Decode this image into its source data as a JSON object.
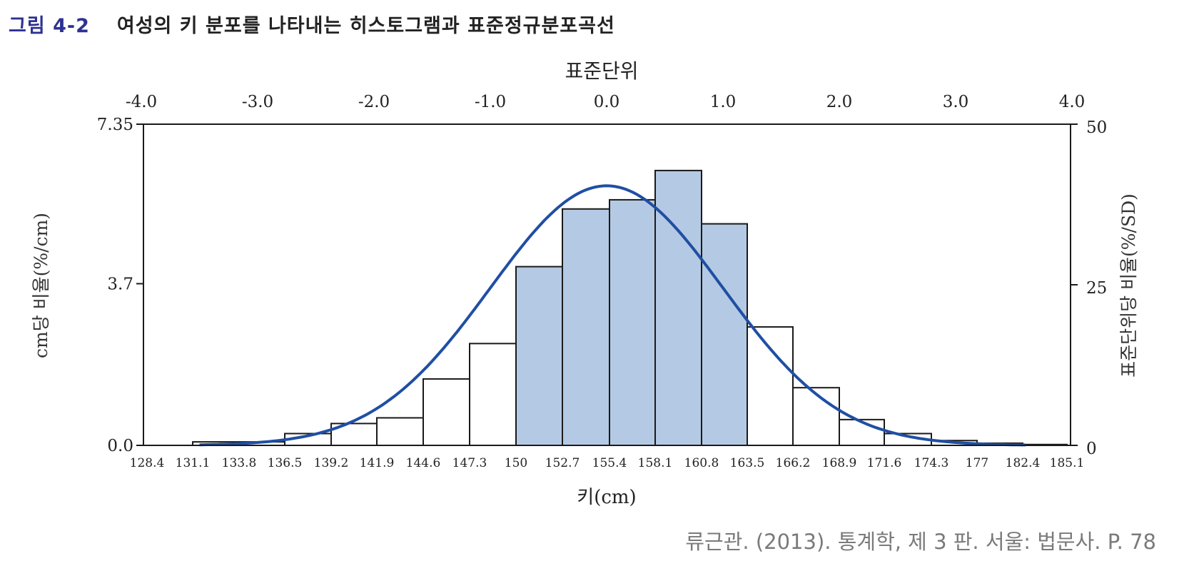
{
  "figure": {
    "label": "그림 4-2",
    "title": "여성의 키 분포를 나타내는 히스토그램과 표준정규분포곡선"
  },
  "citation": "류근관. (2013). 통계학, 제 3 판. 서울: 법문사. P. 78",
  "colors": {
    "highlight_fill": "#b4c9e3",
    "curve": "#1f4fa3",
    "bar_stroke": "#1a1a1a",
    "figure_label": "#2e3192"
  },
  "chart_data": {
    "type": "bar",
    "xlabel": "키(cm)",
    "ylabel_left": "cm당 비율(%/cm)",
    "ylabel_right": "표준단위당 비율(%/SD)",
    "top_axis_label": "표준단위",
    "x_tick_labels": [
      "128.4",
      "131.1",
      "133.8",
      "136.5",
      "139.2",
      "141.9",
      "144.6",
      "147.3",
      "150",
      "152.7",
      "155.4",
      "158.1",
      "160.8",
      "163.5",
      "166.2",
      "168.9",
      "171.6",
      "174.3",
      "177",
      "182.4",
      "185.1"
    ],
    "top_tick_labels": [
      "-4.0",
      "-3.0",
      "-2.0",
      "-1.0",
      "0.0",
      "1.0",
      "2.0",
      "3.0",
      "4.0"
    ],
    "top_ticks_values": [
      -4,
      -3,
      -2,
      -1,
      0,
      1,
      2,
      3,
      4
    ],
    "left_tick_labels": [
      "0.0",
      "3.7",
      "7.35"
    ],
    "left_ticks_values": [
      0,
      3.7,
      7.35
    ],
    "right_tick_labels": [
      "0",
      "25",
      "50"
    ],
    "right_ticks_values": [
      0,
      25,
      50
    ],
    "ylim_left": [
      0,
      7.35
    ],
    "ylim_right": [
      0,
      50
    ],
    "bars": [
      {
        "from": 131.1,
        "to": 133.8,
        "value": 0.08,
        "highlight": false
      },
      {
        "from": 133.8,
        "to": 136.5,
        "value": 0.08,
        "highlight": false
      },
      {
        "from": 136.5,
        "to": 139.2,
        "value": 0.27,
        "highlight": false
      },
      {
        "from": 139.2,
        "to": 141.9,
        "value": 0.5,
        "highlight": false
      },
      {
        "from": 141.9,
        "to": 144.6,
        "value": 0.63,
        "highlight": false
      },
      {
        "from": 144.6,
        "to": 147.3,
        "value": 1.52,
        "highlight": false
      },
      {
        "from": 147.3,
        "to": 150.0,
        "value": 2.33,
        "highlight": false
      },
      {
        "from": 150.0,
        "to": 152.7,
        "value": 4.09,
        "highlight": true
      },
      {
        "from": 152.7,
        "to": 155.4,
        "value": 5.41,
        "highlight": true
      },
      {
        "from": 155.4,
        "to": 158.1,
        "value": 5.62,
        "highlight": true
      },
      {
        "from": 158.1,
        "to": 160.8,
        "value": 6.29,
        "highlight": true
      },
      {
        "from": 160.8,
        "to": 163.5,
        "value": 5.07,
        "highlight": true
      },
      {
        "from": 163.5,
        "to": 166.2,
        "value": 2.71,
        "highlight": false
      },
      {
        "from": 166.2,
        "to": 168.9,
        "value": 1.32,
        "highlight": false
      },
      {
        "from": 168.9,
        "to": 171.6,
        "value": 0.59,
        "highlight": false
      },
      {
        "from": 171.6,
        "to": 174.3,
        "value": 0.27,
        "highlight": false
      },
      {
        "from": 174.3,
        "to": 177.0,
        "value": 0.11,
        "highlight": false
      },
      {
        "from": 177.0,
        "to": 182.4,
        "value": 0.05,
        "highlight": false
      },
      {
        "from": 182.4,
        "to": 185.1,
        "value": 0.02,
        "highlight": false
      }
    ],
    "curve": {
      "mean_su": 0.0,
      "sd_su": 1.0,
      "peak": 5.94,
      "from_su": -3.5,
      "to_su": 3.6
    }
  }
}
